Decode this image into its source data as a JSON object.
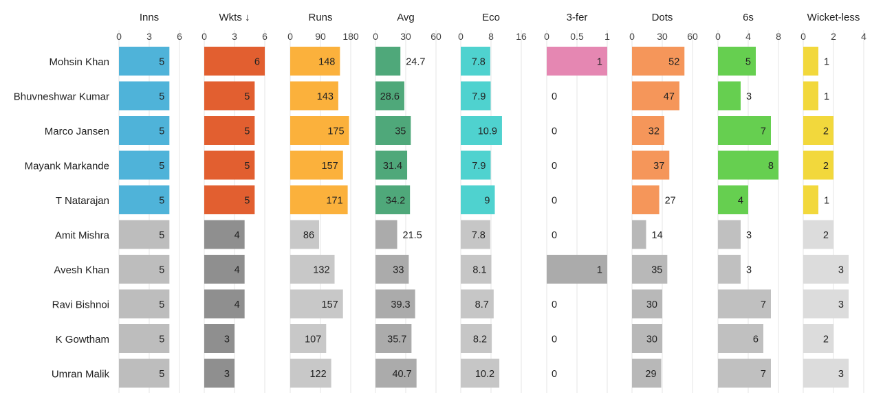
{
  "chart_data": {
    "type": "bar",
    "layout": "small-multiples horizontal bar table",
    "players": [
      "Mohsin Khan",
      "Bhuvneshwar Kumar",
      "Marco Jansen",
      "Mayank Markande",
      "T Natarajan",
      "Amit Mishra",
      "Avesh Khan",
      "Ravi Bishnoi",
      "K Gowtham",
      "Umran Malik"
    ],
    "highlighted_team_rows": 5,
    "grid": true,
    "columns": [
      {
        "key": "inns",
        "title": "Inns",
        "ticks": [
          "0",
          "3",
          "6"
        ],
        "xlim": [
          0,
          6
        ],
        "values": [
          5,
          5,
          5,
          5,
          5,
          5,
          5,
          5,
          5,
          5
        ],
        "labels": [
          "5",
          "5",
          "5",
          "5",
          "5",
          "5",
          "5",
          "5",
          "5",
          "5"
        ],
        "color": "#4fb3d9",
        "grey": "#bdbdbd"
      },
      {
        "key": "wkts",
        "title": "Wkts ↓",
        "ticks": [
          "0",
          "3",
          "6"
        ],
        "xlim": [
          0,
          6
        ],
        "values": [
          6,
          5,
          5,
          5,
          5,
          4,
          4,
          4,
          3,
          3
        ],
        "labels": [
          "6",
          "5",
          "5",
          "5",
          "5",
          "4",
          "4",
          "4",
          "3",
          "3"
        ],
        "color": "#e25f30",
        "grey": "#8f8f8f"
      },
      {
        "key": "runs",
        "title": "Runs",
        "ticks": [
          "0",
          "90",
          "180"
        ],
        "xlim": [
          0,
          180
        ],
        "values": [
          148,
          143,
          175,
          157,
          171,
          86,
          132,
          157,
          107,
          122
        ],
        "labels": [
          "148",
          "143",
          "175",
          "157",
          "171",
          "86",
          "132",
          "157",
          "107",
          "122"
        ],
        "color": "#fbb13c",
        "grey": "#c8c8c8"
      },
      {
        "key": "avg",
        "title": "Avg",
        "ticks": [
          "0",
          "30",
          "60"
        ],
        "xlim": [
          0,
          60
        ],
        "values": [
          24.7,
          28.6,
          35,
          31.4,
          34.2,
          21.5,
          33,
          39.3,
          35.7,
          40.7
        ],
        "labels": [
          "24.7",
          "28.6",
          "35",
          "31.4",
          "34.2",
          "21.5",
          "33",
          "39.3",
          "35.7",
          "40.7"
        ],
        "color": "#4fa87a",
        "grey": "#ababab"
      },
      {
        "key": "eco",
        "title": "Eco",
        "ticks": [
          "0",
          "8",
          "16"
        ],
        "xlim": [
          0,
          16
        ],
        "values": [
          7.8,
          7.9,
          10.9,
          7.9,
          9,
          7.8,
          8.1,
          8.7,
          8.2,
          10.2
        ],
        "labels": [
          "7.8",
          "7.9",
          "10.9",
          "7.9",
          "9",
          "7.8",
          "8.1",
          "8.7",
          "8.2",
          "10.2"
        ],
        "color": "#4fd2cf",
        "grey": "#c6c6c6"
      },
      {
        "key": "threefer",
        "title": "3-fer",
        "ticks": [
          "0",
          "0.5",
          "1"
        ],
        "xlim": [
          0,
          1
        ],
        "values": [
          1,
          0,
          0,
          0,
          0,
          0,
          1,
          0,
          0,
          0
        ],
        "labels": [
          "1",
          "0",
          "0",
          "0",
          "0",
          "0",
          "1",
          "0",
          "0",
          "0"
        ],
        "color": "#e587b2",
        "grey": "#ababab"
      },
      {
        "key": "dots",
        "title": "Dots",
        "ticks": [
          "0",
          "30",
          "60"
        ],
        "xlim": [
          0,
          60
        ],
        "values": [
          52,
          47,
          32,
          37,
          27,
          14,
          35,
          30,
          30,
          29
        ],
        "labels": [
          "52",
          "47",
          "32",
          "37",
          "27",
          "14",
          "35",
          "30",
          "30",
          "29"
        ],
        "color": "#f5965a",
        "grey": "#b8b8b8"
      },
      {
        "key": "sixes",
        "title": "6s",
        "ticks": [
          "0",
          "4",
          "8"
        ],
        "xlim": [
          0,
          8
        ],
        "values": [
          5,
          3,
          7,
          8,
          4,
          3,
          3,
          7,
          6,
          7
        ],
        "labels": [
          "5",
          "3",
          "7",
          "8",
          "4",
          "3",
          "3",
          "7",
          "6",
          "7"
        ],
        "color": "#66cf50",
        "grey": "#c0c0c0"
      },
      {
        "key": "wicketless",
        "title": "Wicket-less",
        "ticks": [
          "0",
          "2",
          "4"
        ],
        "xlim": [
          0,
          4
        ],
        "values": [
          1,
          1,
          2,
          2,
          1,
          2,
          3,
          3,
          2,
          3
        ],
        "labels": [
          "1",
          "1",
          "2",
          "2",
          "1",
          "2",
          "3",
          "3",
          "2",
          "3"
        ],
        "color": "#f2d83c",
        "grey": "#dcdcdc"
      }
    ]
  }
}
